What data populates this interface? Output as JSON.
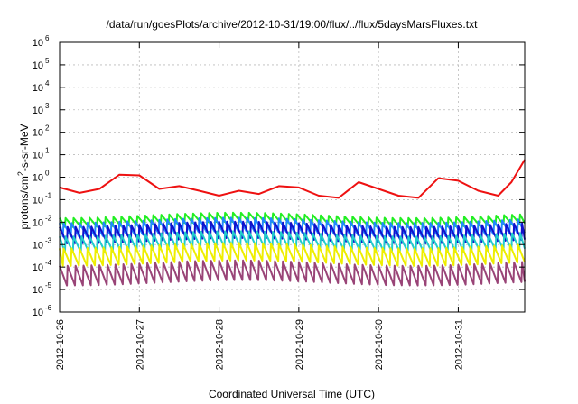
{
  "chart_data": {
    "type": "line",
    "title": "/data/run/goesPlots/archive/2012-10-31/19:00/flux/../flux/5daysMarsFluxes.txt",
    "xlabel": "Coordinated Universal Time (UTC)",
    "ylabel": {
      "prefix": "protons/cm",
      "sup": "2",
      "suffix": "-s-sr-MeV"
    },
    "yscale": "log",
    "ylim": [
      1e-06,
      1000000.0
    ],
    "ytick_exponents": [
      -6,
      -5,
      -4,
      -3,
      -2,
      -1,
      0,
      1,
      2,
      3,
      4,
      5,
      6
    ],
    "ytick_base": "10",
    "xlim": [
      "2012-10-26 00:00",
      "2012-10-31 20:00"
    ],
    "xticks": [
      "2012-10-26",
      "2012-10-27",
      "2012-10-28",
      "2012-10-29",
      "2012-10-30",
      "2012-10-31"
    ],
    "grid": true,
    "legend": "none",
    "sawtooth_period_hours": 2.4,
    "series": [
      {
        "color": "#ee1111",
        "x": [
          "2012-10-26 00:00",
          "2012-10-26 06:00",
          "2012-10-26 12:00",
          "2012-10-26 18:00",
          "2012-10-27 00:00",
          "2012-10-27 06:00",
          "2012-10-27 12:00",
          "2012-10-27 18:00",
          "2012-10-28 00:00",
          "2012-10-28 06:00",
          "2012-10-28 12:00",
          "2012-10-28 18:00",
          "2012-10-29 00:00",
          "2012-10-29 06:00",
          "2012-10-29 12:00",
          "2012-10-29 18:00",
          "2012-10-30 00:00",
          "2012-10-30 06:00",
          "2012-10-30 12:00",
          "2012-10-30 18:00",
          "2012-10-31 00:00",
          "2012-10-31 06:00",
          "2012-10-31 12:00",
          "2012-10-31 16:00",
          "2012-10-31 20:00"
        ],
        "values": [
          0.35,
          0.2,
          0.3,
          1.3,
          1.2,
          0.3,
          0.4,
          0.25,
          0.15,
          0.25,
          0.18,
          0.4,
          0.35,
          0.15,
          0.12,
          0.6,
          0.3,
          0.15,
          0.12,
          0.9,
          0.7,
          0.25,
          0.15,
          0.6,
          6.0
        ]
      },
      {
        "color": "#22ee22",
        "high": 0.02,
        "low": 0.008
      },
      {
        "color": "#2288ff",
        "high": 0.012,
        "low": 0.003
      },
      {
        "color": "#1111cc",
        "high": 0.008,
        "low": 0.0015
      },
      {
        "color": "#22cccc",
        "high": 0.003,
        "low": 0.0006
      },
      {
        "color": "#eeee00",
        "high": 0.0009,
        "low": 0.00015
      },
      {
        "color": "#994477",
        "high": 0.00015,
        "low": 2e-05
      }
    ]
  }
}
